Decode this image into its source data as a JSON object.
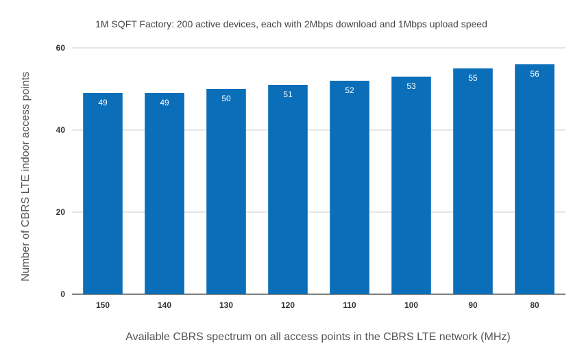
{
  "chart_data": {
    "type": "bar",
    "title": "1M SQFT Factory: 200 active devices, each with 2Mbps download and 1Mbps upload speed",
    "xlabel": "Available CBRS spectrum on all access points in the CBRS LTE network (MHz)",
    "ylabel": "Number of CBRS LTE indoor access points",
    "categories": [
      "150",
      "140",
      "130",
      "120",
      "110",
      "100",
      "90",
      "80"
    ],
    "values": [
      49,
      49,
      50,
      51,
      52,
      53,
      55,
      56
    ],
    "ylim": [
      0,
      60
    ],
    "yticks": [
      0,
      20,
      40,
      60
    ],
    "grid": true,
    "legend": "none",
    "bar_color": "#0b6eb8",
    "label_color": "#ffffff"
  }
}
